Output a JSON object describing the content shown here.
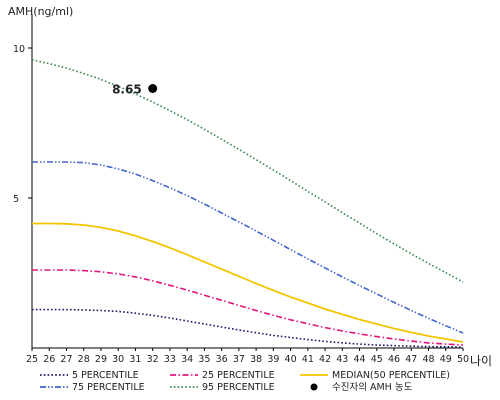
{
  "chart_data": {
    "type": "line",
    "ylabel": "AMH(ng/ml)",
    "xlabel": "나이",
    "xlim": [
      25,
      50
    ],
    "ylim": [
      0,
      11
    ],
    "yticks": [
      5,
      10
    ],
    "x": [
      25,
      26,
      27,
      28,
      29,
      30,
      31,
      32,
      33,
      34,
      35,
      36,
      37,
      38,
      39,
      40,
      41,
      42,
      43,
      44,
      45,
      46,
      47,
      48,
      49,
      50
    ],
    "series": [
      {
        "name": "5 PERCENTILE",
        "color": "#1a1a6e",
        "dash": "dotted",
        "values": [
          1.28,
          1.28,
          1.28,
          1.27,
          1.25,
          1.22,
          1.16,
          1.09,
          1.0,
          0.9,
          0.8,
          0.7,
          0.6,
          0.51,
          0.42,
          0.35,
          0.28,
          0.22,
          0.17,
          0.13,
          0.1,
          0.08,
          0.06,
          0.05,
          0.04,
          0.03
        ]
      },
      {
        "name": "25 PERCENTILE",
        "color": "#e0157f",
        "dash": "dashdot",
        "values": [
          2.6,
          2.6,
          2.6,
          2.58,
          2.54,
          2.47,
          2.37,
          2.24,
          2.09,
          1.93,
          1.76,
          1.59,
          1.42,
          1.25,
          1.09,
          0.94,
          0.81,
          0.68,
          0.57,
          0.47,
          0.38,
          0.3,
          0.23,
          0.17,
          0.13,
          0.1
        ]
      },
      {
        "name": "MEDIAN(50 PERCENTILE)",
        "color": "#f2c500",
        "dash": "solid",
        "values": [
          4.15,
          4.15,
          4.14,
          4.1,
          4.02,
          3.9,
          3.74,
          3.55,
          3.34,
          3.11,
          2.87,
          2.63,
          2.39,
          2.15,
          1.92,
          1.7,
          1.5,
          1.3,
          1.12,
          0.95,
          0.8,
          0.65,
          0.52,
          0.4,
          0.3,
          0.2
        ]
      },
      {
        "name": "75 PERCENTILE",
        "color": "#4466cc",
        "dash": "dashdotdot",
        "values": [
          6.2,
          6.2,
          6.2,
          6.18,
          6.1,
          5.97,
          5.8,
          5.58,
          5.34,
          5.08,
          4.8,
          4.5,
          4.2,
          3.9,
          3.59,
          3.28,
          2.97,
          2.67,
          2.37,
          2.08,
          1.8,
          1.52,
          1.25,
          0.99,
          0.74,
          0.5
        ]
      },
      {
        "name": "95 PERCENTILE",
        "color": "#3a8a50",
        "dash": "dotted",
        "values": [
          9.6,
          9.48,
          9.33,
          9.15,
          8.95,
          8.72,
          8.47,
          8.2,
          7.91,
          7.61,
          7.29,
          6.96,
          6.62,
          6.28,
          5.93,
          5.58,
          5.22,
          4.87,
          4.51,
          4.16,
          3.81,
          3.47,
          3.14,
          2.82,
          2.51,
          2.2
        ]
      }
    ],
    "annotations": [
      {
        "label": "8.65",
        "x": 32,
        "y": 8.65,
        "series": "수진자의 AMH 농도"
      }
    ],
    "legend": {
      "placement": "bottom",
      "entries": [
        {
          "label": "5 PERCENTILE",
          "color": "#1a1a6e",
          "dash": "dotted"
        },
        {
          "label": "25 PERCENTILE",
          "color": "#e0157f",
          "dash": "dashdot"
        },
        {
          "label": "MEDIAN(50 PERCENTILE)",
          "color": "#f2c500",
          "dash": "solid"
        },
        {
          "label": "75 PERCENTILE",
          "color": "#4466cc",
          "dash": "dashdotdot"
        },
        {
          "label": "95 PERCENTILE",
          "color": "#3a8a50",
          "dash": "dotted"
        },
        {
          "label": "수진자의 AMH 농도",
          "color": "#000000",
          "dash": "marker"
        }
      ]
    },
    "grid": false
  }
}
